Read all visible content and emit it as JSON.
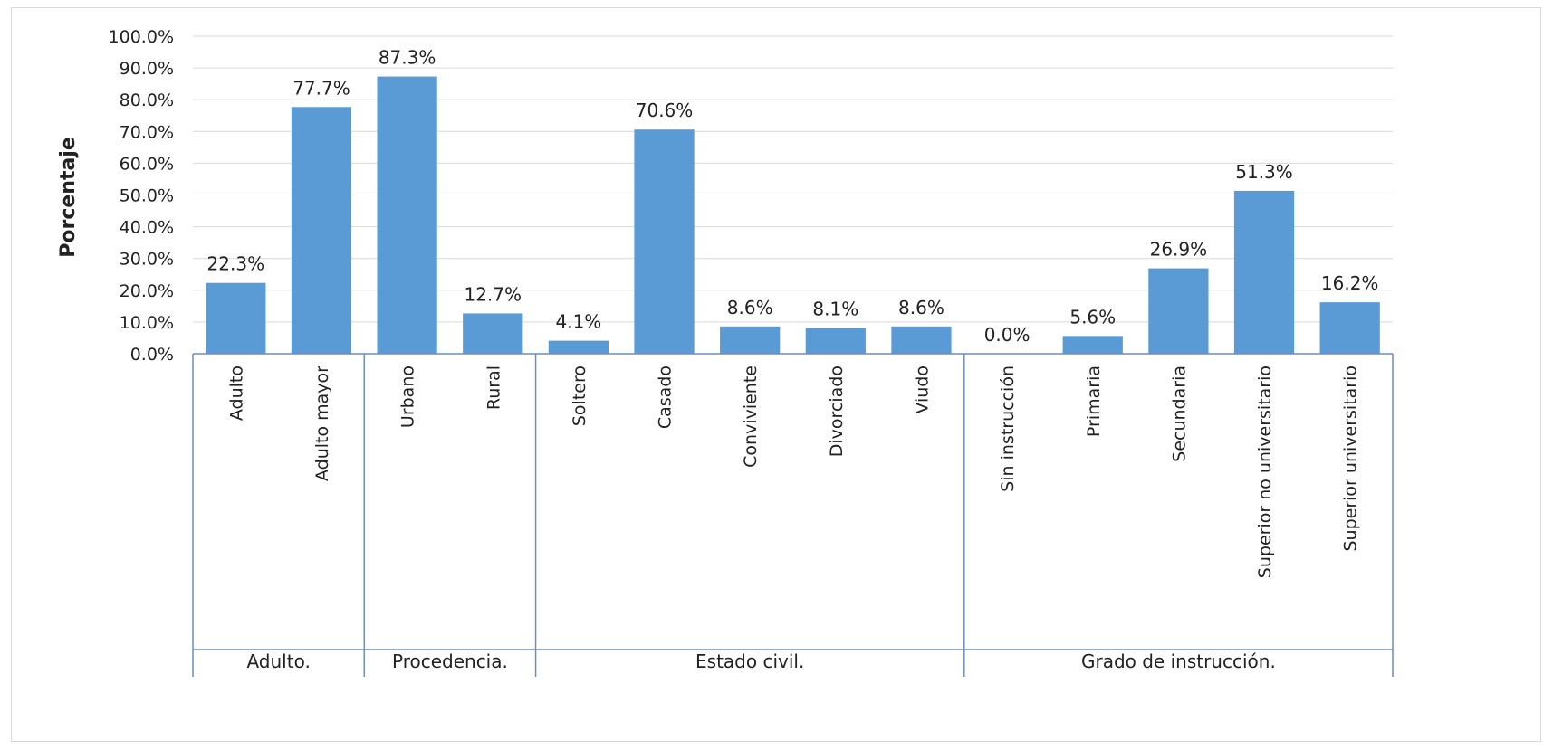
{
  "chart_data": {
    "type": "bar",
    "ylabel": "Porcentaje",
    "ylim": [
      0,
      100
    ],
    "y_ticks": [
      "0.0%",
      "10.0%",
      "20.0%",
      "30.0%",
      "40.0%",
      "50.0%",
      "60.0%",
      "70.0%",
      "80.0%",
      "90.0%",
      "100.0%"
    ],
    "grid": true,
    "bar_color": "#5b9bd5",
    "groups": [
      {
        "name": "Adulto.",
        "categories": [
          "Adulto",
          "Adulto mayor"
        ],
        "values": [
          22.3,
          77.7
        ],
        "labels": [
          "22.3%",
          "77.7%"
        ]
      },
      {
        "name": "Procedencia.",
        "categories": [
          "Urbano",
          "Rural"
        ],
        "values": [
          87.3,
          12.7
        ],
        "labels": [
          "87.3%",
          "12.7%"
        ]
      },
      {
        "name": "Estado civil.",
        "categories": [
          "Soltero",
          "Casado",
          "Conviviente",
          "Divorciado",
          "Viudo"
        ],
        "values": [
          4.1,
          70.6,
          8.6,
          8.1,
          8.6
        ],
        "labels": [
          "4.1%",
          "70.6%",
          "8.6%",
          "8.1%",
          "8.6%"
        ]
      },
      {
        "name": "Grado de instrucción.",
        "categories": [
          "Sin instrucción",
          "Primaria",
          "Secundaria",
          "Superior no universitario",
          "Superior universitario"
        ],
        "values": [
          0.0,
          5.6,
          26.9,
          51.3,
          16.2
        ],
        "labels": [
          "0.0%",
          "5.6%",
          "26.9%",
          "51.3%",
          "16.2%"
        ]
      }
    ]
  }
}
